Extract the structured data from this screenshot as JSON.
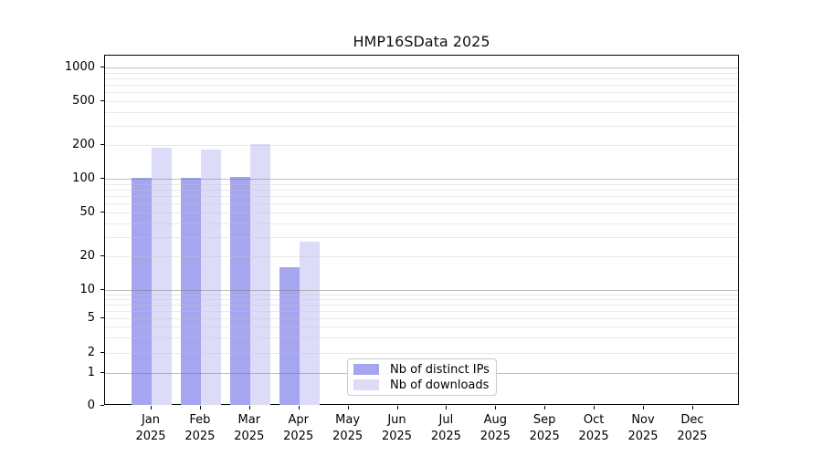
{
  "chart_data": {
    "type": "bar",
    "title": "HMP16SData 2025",
    "categories": [
      "Jan 2025",
      "Feb 2025",
      "Mar 2025",
      "Apr 2025",
      "May 2025",
      "Jun 2025",
      "Jul 2025",
      "Aug 2025",
      "Sep 2025",
      "Oct 2025",
      "Nov 2025",
      "Dec 2025"
    ],
    "series": [
      {
        "name": "Nb of distinct IPs",
        "color": "#a5a5f0",
        "values": [
          102,
          102,
          104,
          16,
          0,
          0,
          0,
          0,
          0,
          0,
          0,
          0
        ]
      },
      {
        "name": "Nb of downloads",
        "color": "#dcdcf8",
        "values": [
          190,
          184,
          206,
          27,
          0,
          0,
          0,
          0,
          0,
          0,
          0,
          0
        ]
      }
    ],
    "yscale": "symlog",
    "ytick_labels": [
      0,
      1,
      2,
      5,
      10,
      20,
      50,
      100,
      200,
      500,
      1000
    ],
    "ylim": [
      0,
      1300
    ],
    "xlabel": "",
    "ylabel": "",
    "grid": true,
    "legend_position": "lower center"
  }
}
